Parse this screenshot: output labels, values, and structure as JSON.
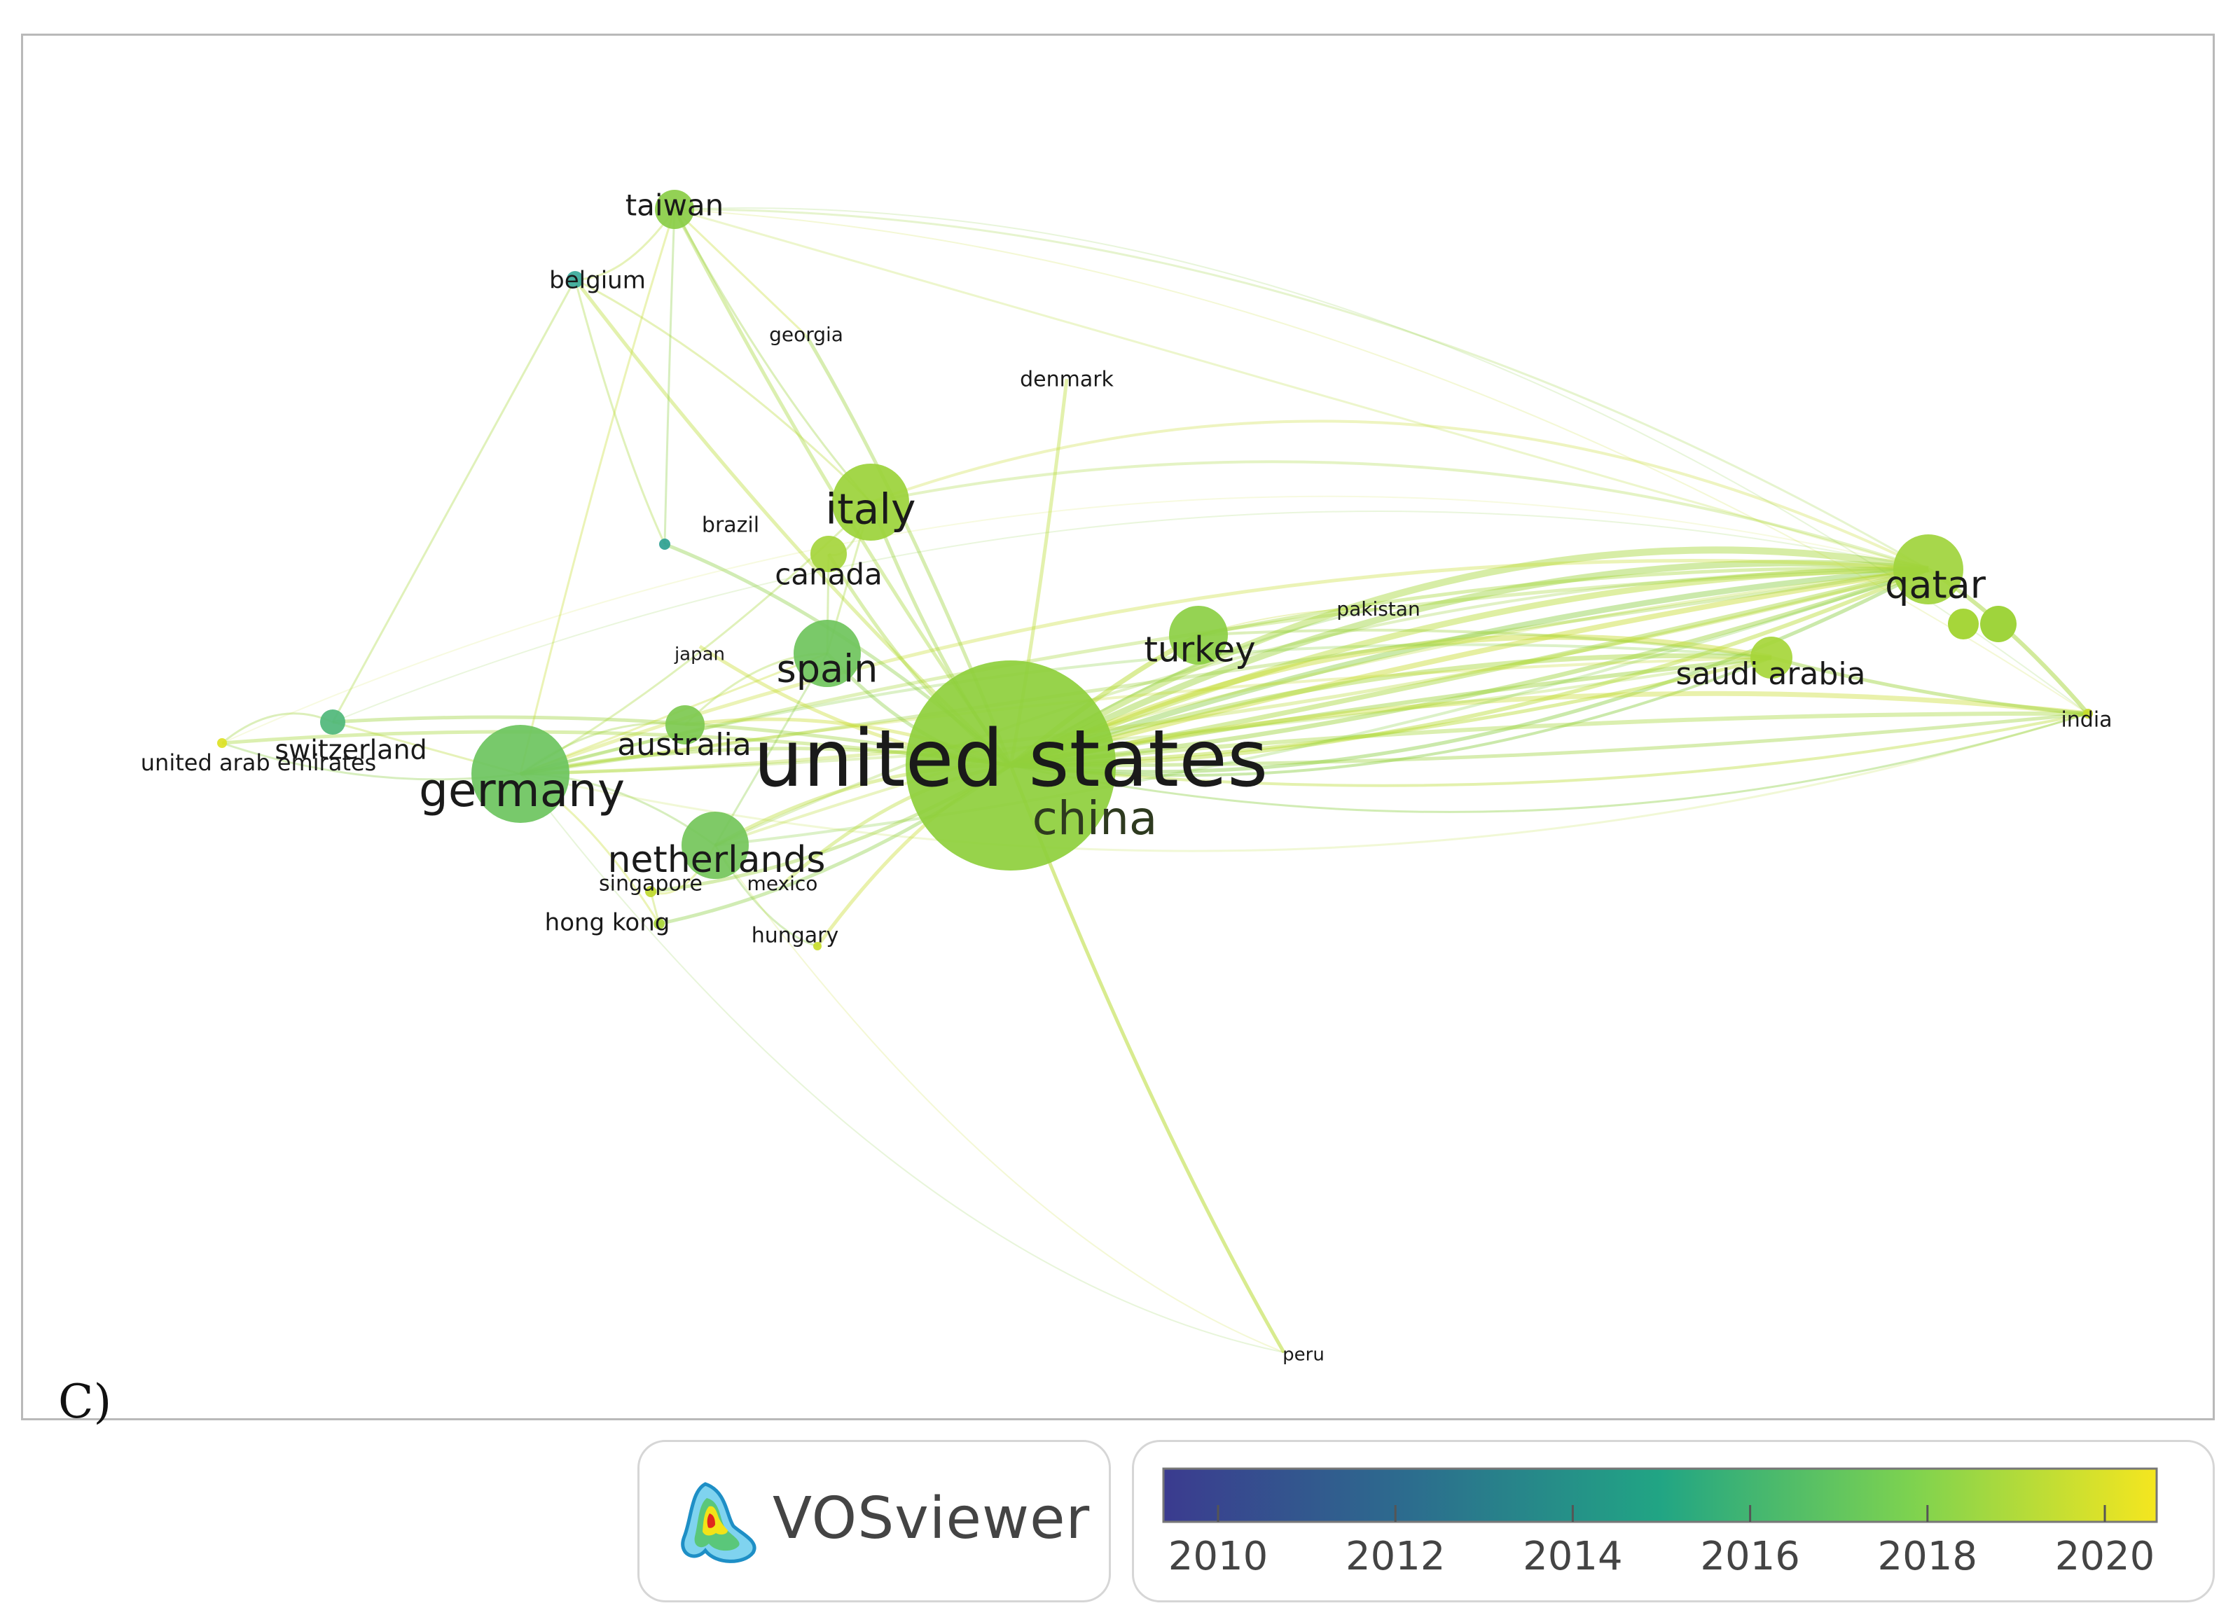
{
  "panel_label": "C)",
  "brand": {
    "name": "VOSviewer"
  },
  "color_scale": {
    "ticks": [
      "2010",
      "2012",
      "2014",
      "2016",
      "2018",
      "2020"
    ],
    "start_color": "#3b3b8f",
    "mid_color": "#21a584",
    "end_color": "#f5e61f"
  },
  "nodes": [
    {
      "label": "united states",
      "color": "#8ecf3c",
      "text_color": "#1a1a1a"
    },
    {
      "label": "china",
      "color": "#8ecf3c",
      "text_color": "#2e3a1f"
    },
    {
      "label": "germany",
      "color": "#6cc45e",
      "text_color": "#1a1a1a"
    },
    {
      "label": "italy",
      "color": "#9bd23a",
      "text_color": "#1a1a1a"
    },
    {
      "label": "qatar",
      "color": "#9fd43c",
      "text_color": "#1a1a1a"
    },
    {
      "label": "netherlands",
      "color": "#74c65a",
      "text_color": "#1a1a1a"
    },
    {
      "label": "spain",
      "color": "#6fc45c",
      "text_color": "#1a1a1a"
    },
    {
      "label": "turkey",
      "color": "#8ccf44",
      "text_color": "#1a1a1a"
    },
    {
      "label": "saudi arabia",
      "color": "#a6d63a",
      "text_color": "#1a1a1a"
    },
    {
      "label": "taiwan",
      "color": "#8acd46",
      "text_color": "#1a1a1a"
    },
    {
      "label": "australia",
      "color": "#7dc950",
      "text_color": "#1a1a1a"
    },
    {
      "label": "canada",
      "color": "#a5d53c",
      "text_color": "#1a1a1a"
    },
    {
      "label": "switzerland",
      "color": "#4fb77a",
      "text_color": "#1a1a1a"
    },
    {
      "label": "belgium",
      "color": "#3aa99a",
      "text_color": "#1a1a1a"
    },
    {
      "label": "brazil",
      "color": "#2e9f92",
      "text_color": "#1a1a1a"
    },
    {
      "label": "japan",
      "color": "#9bd23a",
      "text_color": "#1a1a1a"
    },
    {
      "label": "georgia",
      "color": "#d2df2a",
      "text_color": "#1a1a1a"
    },
    {
      "label": "denmark",
      "color": "#a7d638",
      "text_color": "#1a1a1a"
    },
    {
      "label": "pakistan",
      "color": "#c7dc2e",
      "text_color": "#1a1a1a"
    },
    {
      "label": "india",
      "color": "#c8dc2c",
      "text_color": "#1a1a1a"
    },
    {
      "label": "united arab emirates",
      "color": "#dde225",
      "text_color": "#1a1a1a"
    },
    {
      "label": "singapore",
      "color": "#c0da30",
      "text_color": "#1a1a1a"
    },
    {
      "label": "mexico",
      "color": "#b5d834",
      "text_color": "#1a1a1a"
    },
    {
      "label": "hong kong",
      "color": "#a9d638",
      "text_color": "#1a1a1a"
    },
    {
      "label": "hungary",
      "color": "#c9dd2c",
      "text_color": "#1a1a1a"
    },
    {
      "label": "peru",
      "color": "#e2e323",
      "text_color": "#1a1a1a"
    }
  ]
}
